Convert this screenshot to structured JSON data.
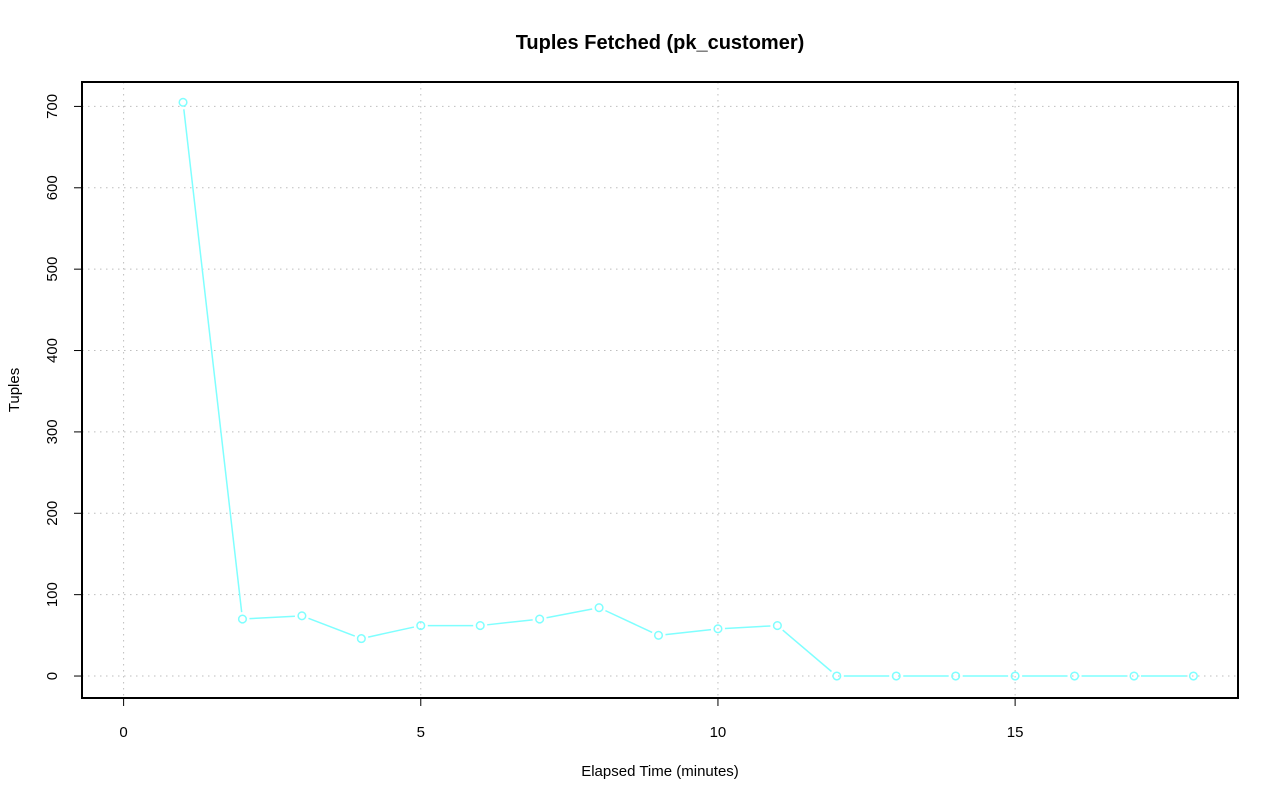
{
  "chart_data": {
    "type": "line",
    "title": "Tuples Fetched (pk_customer)",
    "xlabel": "Elapsed Time (minutes)",
    "ylabel": "Tuples",
    "xlim": [
      -0.7,
      18.75
    ],
    "ylim": [
      -27,
      730
    ],
    "x_ticks": [
      0,
      5,
      10,
      15
    ],
    "y_ticks": [
      0,
      100,
      200,
      300,
      400,
      500,
      600,
      700
    ],
    "grid": true,
    "series": [
      {
        "x": [
          1,
          2,
          3,
          4,
          5,
          6,
          7,
          8,
          9,
          10,
          11,
          12,
          13,
          14,
          15,
          16,
          17,
          18
        ],
        "values": [
          705,
          70,
          74,
          46,
          62,
          62,
          70,
          84,
          50,
          58,
          62,
          0,
          0,
          0,
          0,
          0,
          0,
          0
        ],
        "color": "#7fffff",
        "marker": "open-circle"
      }
    ]
  }
}
